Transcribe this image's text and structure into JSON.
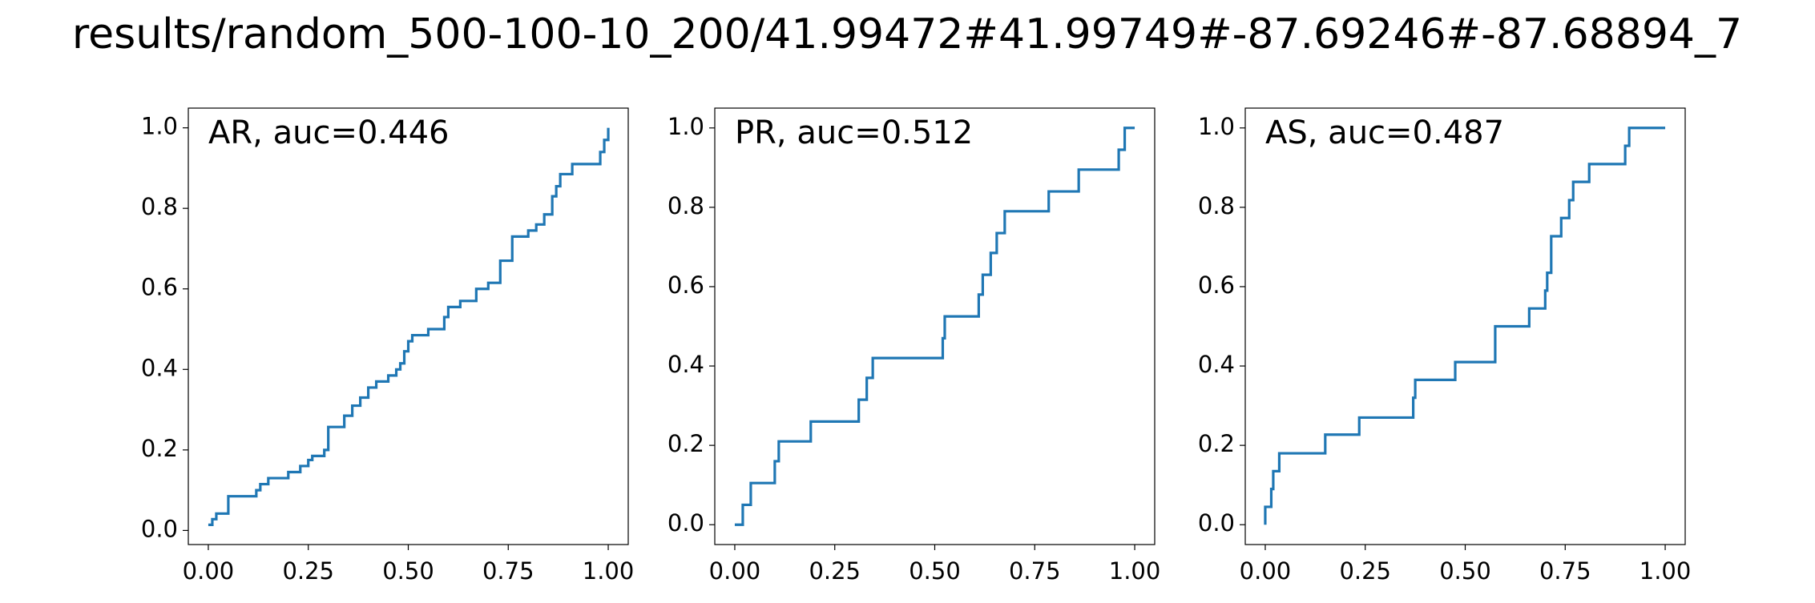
{
  "title": "results/random_500-100-10_200/41.99472#41.99749#-87.69246#-87.68894_7",
  "chart_data": [
    {
      "type": "line",
      "annotation": "AR, auc=0.446",
      "x": [
        0,
        0.01,
        0.01,
        0.02,
        0.02,
        0.05,
        0.05,
        0.12,
        0.12,
        0.13,
        0.13,
        0.15,
        0.15,
        0.2,
        0.2,
        0.23,
        0.23,
        0.25,
        0.25,
        0.26,
        0.26,
        0.29,
        0.29,
        0.3,
        0.3,
        0.34,
        0.34,
        0.36,
        0.36,
        0.38,
        0.38,
        0.4,
        0.4,
        0.42,
        0.42,
        0.45,
        0.45,
        0.47,
        0.47,
        0.48,
        0.48,
        0.49,
        0.49,
        0.5,
        0.5,
        0.51,
        0.51,
        0.55,
        0.55,
        0.59,
        0.59,
        0.6,
        0.6,
        0.63,
        0.63,
        0.67,
        0.67,
        0.7,
        0.7,
        0.73,
        0.73,
        0.76,
        0.76,
        0.8,
        0.8,
        0.82,
        0.82,
        0.84,
        0.84,
        0.86,
        0.86,
        0.87,
        0.87,
        0.88,
        0.88,
        0.91,
        0.91,
        0.98,
        0.98,
        0.99,
        0.99,
        1.0,
        1.0
      ],
      "series": [
        {
          "color": "#1f77b4",
          "values": [
            0.014,
            0.014,
            0.028,
            0.028,
            0.042,
            0.042,
            0.085,
            0.085,
            0.1,
            0.1,
            0.115,
            0.115,
            0.13,
            0.13,
            0.145,
            0.145,
            0.16,
            0.16,
            0.175,
            0.175,
            0.185,
            0.185,
            0.2,
            0.2,
            0.257,
            0.257,
            0.285,
            0.285,
            0.31,
            0.31,
            0.33,
            0.33,
            0.355,
            0.355,
            0.37,
            0.37,
            0.385,
            0.385,
            0.4,
            0.4,
            0.415,
            0.415,
            0.445,
            0.445,
            0.47,
            0.47,
            0.485,
            0.485,
            0.5,
            0.5,
            0.53,
            0.53,
            0.555,
            0.555,
            0.57,
            0.57,
            0.6,
            0.6,
            0.615,
            0.615,
            0.67,
            0.67,
            0.73,
            0.73,
            0.745,
            0.745,
            0.76,
            0.76,
            0.785,
            0.785,
            0.83,
            0.83,
            0.855,
            0.855,
            0.885,
            0.885,
            0.91,
            0.91,
            0.94,
            0.94,
            0.97,
            0.97,
            1.0
          ]
        }
      ],
      "xlim": [
        -0.05,
        1.05
      ],
      "ylim": [
        -0.035,
        1.049
      ],
      "xticks": [
        {
          "value": 0,
          "label": "0.00"
        },
        0.25,
        {
          "value": 0.5,
          "label": "0.50"
        },
        0.75,
        {
          "value": 1,
          "label": "1.00"
        }
      ],
      "yticks": [
        {
          "value": 0,
          "label": "0.0"
        },
        0.2,
        0.4,
        0.6,
        0.8,
        {
          "value": 1,
          "label": "1.0"
        }
      ]
    },
    {
      "type": "line",
      "annotation": "PR, auc=0.512",
      "x": [
        0,
        0.02,
        0.02,
        0.04,
        0.04,
        0.1,
        0.1,
        0.11,
        0.11,
        0.19,
        0.19,
        0.31,
        0.31,
        0.33,
        0.33,
        0.345,
        0.345,
        0.52,
        0.52,
        0.525,
        0.525,
        0.61,
        0.61,
        0.62,
        0.62,
        0.64,
        0.64,
        0.655,
        0.655,
        0.675,
        0.675,
        0.785,
        0.785,
        0.86,
        0.86,
        0.96,
        0.96,
        0.975,
        0.975,
        1.0
      ],
      "series": [
        {
          "color": "#1f77b4",
          "values": [
            0,
            0,
            0.05,
            0.05,
            0.105,
            0.105,
            0.16,
            0.16,
            0.21,
            0.21,
            0.26,
            0.26,
            0.315,
            0.315,
            0.37,
            0.37,
            0.42,
            0.42,
            0.47,
            0.47,
            0.525,
            0.525,
            0.58,
            0.58,
            0.63,
            0.63,
            0.685,
            0.685,
            0.735,
            0.735,
            0.79,
            0.79,
            0.84,
            0.84,
            0.895,
            0.895,
            0.945,
            0.945,
            1.0,
            1.0
          ]
        }
      ],
      "xlim": [
        -0.05,
        1.05
      ],
      "ylim": [
        -0.05,
        1.05
      ],
      "xticks": [
        {
          "value": 0,
          "label": "0.00"
        },
        0.25,
        {
          "value": 0.5,
          "label": "0.50"
        },
        0.75,
        {
          "value": 1,
          "label": "1.00"
        }
      ],
      "yticks": [
        {
          "value": 0,
          "label": "0.0"
        },
        0.2,
        0.4,
        0.6,
        0.8,
        {
          "value": 1,
          "label": "1.0"
        }
      ]
    },
    {
      "type": "line",
      "annotation": "AS, auc=0.487",
      "x": [
        0,
        0,
        0.015,
        0.015,
        0.02,
        0.02,
        0.035,
        0.035,
        0.15,
        0.15,
        0.235,
        0.235,
        0.37,
        0.37,
        0.375,
        0.375,
        0.475,
        0.475,
        0.575,
        0.575,
        0.66,
        0.66,
        0.7,
        0.7,
        0.705,
        0.705,
        0.715,
        0.715,
        0.74,
        0.74,
        0.76,
        0.76,
        0.77,
        0.77,
        0.81,
        0.81,
        0.9,
        0.9,
        0.91,
        0.91,
        1.0
      ],
      "series": [
        {
          "color": "#1f77b4",
          "values": [
            0,
            0.045,
            0.045,
            0.09,
            0.09,
            0.135,
            0.135,
            0.18,
            0.18,
            0.227,
            0.227,
            0.27,
            0.27,
            0.32,
            0.32,
            0.365,
            0.365,
            0.41,
            0.41,
            0.5,
            0.5,
            0.545,
            0.545,
            0.59,
            0.59,
            0.635,
            0.635,
            0.727,
            0.727,
            0.773,
            0.773,
            0.818,
            0.818,
            0.864,
            0.864,
            0.909,
            0.909,
            0.955,
            0.955,
            1.0,
            1.0
          ]
        }
      ],
      "xlim": [
        -0.05,
        1.05
      ],
      "ylim": [
        -0.05,
        1.05
      ],
      "xticks": [
        {
          "value": 0,
          "label": "0.00"
        },
        0.25,
        {
          "value": 0.5,
          "label": "0.50"
        },
        0.75,
        {
          "value": 1,
          "label": "1.00"
        }
      ],
      "yticks": [
        {
          "value": 0,
          "label": "0.0"
        },
        0.2,
        0.4,
        0.6,
        0.8,
        {
          "value": 1,
          "label": "1.0"
        }
      ]
    }
  ]
}
